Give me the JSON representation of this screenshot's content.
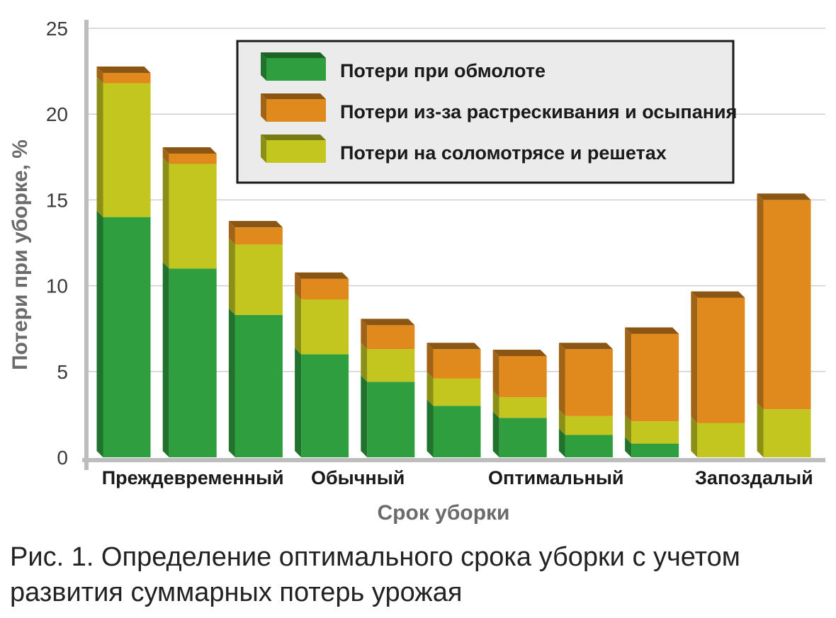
{
  "chart_data": {
    "type": "bar",
    "stacked": true,
    "ylabel": "Потери при уборке, %",
    "xlabel": "Срок уборки",
    "ylim": [
      0,
      25
    ],
    "yticks": [
      0,
      5,
      10,
      15,
      20,
      25
    ],
    "grid": true,
    "legend_position": "top-right",
    "category_labels": [
      {
        "text": "Преждевременный",
        "bar_index": 1
      },
      {
        "text": "Обычный",
        "bar_index": 3.5
      },
      {
        "text": "Оптимальный",
        "bar_index": 6.5
      },
      {
        "text": "Запоздалый",
        "bar_index": 9.5
      }
    ],
    "series": [
      {
        "name": "Потери при обмолоте",
        "color": "#2e9e3e",
        "values": [
          14.0,
          11.0,
          8.3,
          6.0,
          4.4,
          3.0,
          2.3,
          1.3,
          0.8,
          0,
          0
        ]
      },
      {
        "name": "Потери на соломотрясе и решетах",
        "color": "#c2c61f",
        "values": [
          7.8,
          6.1,
          4.1,
          3.2,
          1.9,
          1.6,
          1.2,
          1.1,
          1.3,
          2.0,
          2.8
        ]
      },
      {
        "name": "Потери из-за растрескивания и осыпания",
        "color": "#e08a1e",
        "values": [
          0.6,
          0.6,
          1.0,
          1.2,
          1.4,
          1.7,
          2.4,
          3.9,
          5.1,
          7.3,
          12.2
        ]
      }
    ],
    "legend_order": [
      "Потери при обмолоте",
      "Потери из-за растрескивания и осыпания",
      "Потери на соломотрясе и решетах"
    ]
  },
  "caption": "Рис. 1. Определение оптимального срока уборки с учетом развития суммарных потерь урожая"
}
